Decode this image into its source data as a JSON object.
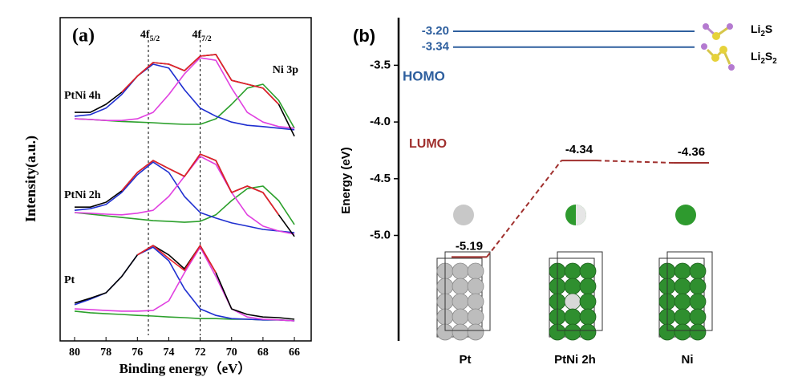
{
  "chart_data": [
    {
      "type": "line",
      "label": "(a)",
      "xlabel": "Binding energy（eV）",
      "ylabel": "Intensity(a.u.)",
      "xlim": [
        80.92,
        64.93
      ],
      "xticks": [
        80,
        78,
        76,
        74,
        72,
        70,
        68,
        66
      ],
      "ylim": [
        0,
        100
      ],
      "x": [
        80,
        79,
        78,
        77,
        76,
        75,
        74,
        73,
        72,
        71,
        70,
        69,
        68,
        67,
        66
      ],
      "vlines": [
        {
          "value": 75.3,
          "label": "4f5/2"
        },
        {
          "value": 72.0,
          "label": "4f7/2"
        }
      ],
      "annotation": "Ni 3p",
      "groups": [
        {
          "label": "PtNi 4h",
          "series": [
            {
              "color": "#2ca02c",
              "values": [
                68.7,
                68.5,
                68.2,
                67.9,
                67.7,
                67.5,
                67.2,
                67.0,
                67.0,
                68.7,
                73.2,
                78.2,
                79.4,
                74.4,
                65.8
              ]
            },
            {
              "color": "#1f2fd0",
              "values": [
                69.5,
                70.0,
                72.0,
                76.2,
                81.9,
                85.6,
                84.4,
                77.7,
                72.0,
                69.5,
                67.7,
                66.7,
                66.3,
                65.8,
                65.3
              ]
            },
            {
              "color": "#e040e0",
              "values": [
                68.7,
                68.5,
                68.2,
                68.2,
                68.7,
                70.7,
                76.2,
                82.6,
                87.6,
                86.8,
                78.2,
                70.7,
                67.7,
                66.3,
                65.8
              ]
            },
            {
              "color": "#000000",
              "values": [
                70.7,
                70.7,
                73.2,
                76.9,
                81.9,
                86.1,
                85.6,
                83.6,
                88.1,
                88.6,
                80.6,
                79.4,
                78.2,
                73.2,
                63.3
              ]
            },
            {
              "color": "#e8202a",
              "values": [
                null,
                null,
                null,
                76.9,
                81.9,
                86.1,
                85.6,
                83.6,
                88.1,
                88.6,
                80.6,
                79.4,
                78.2,
                73.2,
                null
              ]
            }
          ]
        },
        {
          "label": "PtNi 2h",
          "series": [
            {
              "color": "#2ca02c",
              "values": [
                39.7,
                39.2,
                38.7,
                38.2,
                37.7,
                37.2,
                37.0,
                36.7,
                37.0,
                39.0,
                43.4,
                47.1,
                47.9,
                43.4,
                36.0
              ]
            },
            {
              "color": "#1f2fd0",
              "values": [
                40.4,
                40.9,
                42.2,
                45.9,
                51.4,
                55.3,
                52.1,
                44.7,
                39.7,
                38.0,
                36.5,
                35.5,
                34.5,
                34.0,
                33.5
              ]
            },
            {
              "color": "#e040e0",
              "values": [
                39.7,
                39.5,
                39.2,
                39.0,
                39.5,
                40.4,
                44.7,
                50.9,
                57.1,
                54.6,
                45.9,
                39.0,
                35.5,
                34.0,
                33.0
              ]
            },
            {
              "color": "#000000",
              "values": [
                41.4,
                41.4,
                42.9,
                46.4,
                52.1,
                55.8,
                53.3,
                50.9,
                57.8,
                55.8,
                45.9,
                47.9,
                45.9,
                39.0,
                32.3
              ]
            },
            {
              "color": "#e8202a",
              "values": [
                null,
                null,
                null,
                46.4,
                52.1,
                55.8,
                53.3,
                50.9,
                57.8,
                55.8,
                45.9,
                47.9,
                45.9,
                39.0,
                null
              ]
            }
          ]
        },
        {
          "label": "Pt",
          "series": [
            {
              "color": "#2ca02c",
              "values": [
                9.2,
                8.7,
                8.4,
                8.2,
                7.9,
                7.7,
                7.4,
                7.2,
                6.9,
                6.9,
                6.7,
                6.7,
                6.5,
                6.5,
                6.2
              ]
            },
            {
              "color": "#1f2fd0",
              "values": [
                11.2,
                12.9,
                14.9,
                19.9,
                26.6,
                29.0,
                24.8,
                16.1,
                9.9,
                7.9,
                6.9,
                6.7,
                6.5,
                6.5,
                6.2
              ]
            },
            {
              "color": "#e040e0",
              "values": [
                9.9,
                9.7,
                9.4,
                9.2,
                9.2,
                9.4,
                12.4,
                21.1,
                29.0,
                19.9,
                9.9,
                7.4,
                6.7,
                6.5,
                6.2
              ]
            },
            {
              "color": "#000000",
              "values": [
                11.7,
                13.2,
                14.9,
                19.9,
                26.6,
                29.5,
                26.6,
                22.3,
                29.5,
                21.1,
                9.9,
                8.2,
                7.4,
                7.2,
                6.7
              ]
            },
            {
              "color": "#e8202a",
              "values": [
                null,
                null,
                null,
                null,
                26.6,
                29.5,
                25.5,
                21.8,
                29.5,
                21.1,
                null,
                null,
                null,
                null,
                null
              ]
            }
          ]
        }
      ]
    },
    {
      "type": "levels",
      "label": "(b)",
      "ylabel": "Energy (eV)",
      "ylim": [
        -5.93,
        -3.08
      ],
      "yticks": [
        -3.5,
        {
          "value": -4,
          "label": "-4.0"
        },
        -4.5,
        {
          "value": -5,
          "label": "-5.0"
        }
      ],
      "homo": {
        "label": "HOMO",
        "color": "#2e5f9e",
        "names": [
          "Li2S",
          "Li2S2"
        ],
        "values": [
          -3.2,
          -3.34
        ],
        "value_labels": [
          "-3.20",
          "-3.34"
        ]
      },
      "lumo": {
        "label": "LUMO",
        "color": "#a0302e",
        "categories": [
          "Pt",
          "PtNi 2h",
          "Ni"
        ],
        "values": [
          -5.19,
          -4.34,
          -4.36
        ],
        "value_labels": [
          "-5.19",
          "-4.34",
          "-4.36"
        ]
      }
    }
  ]
}
